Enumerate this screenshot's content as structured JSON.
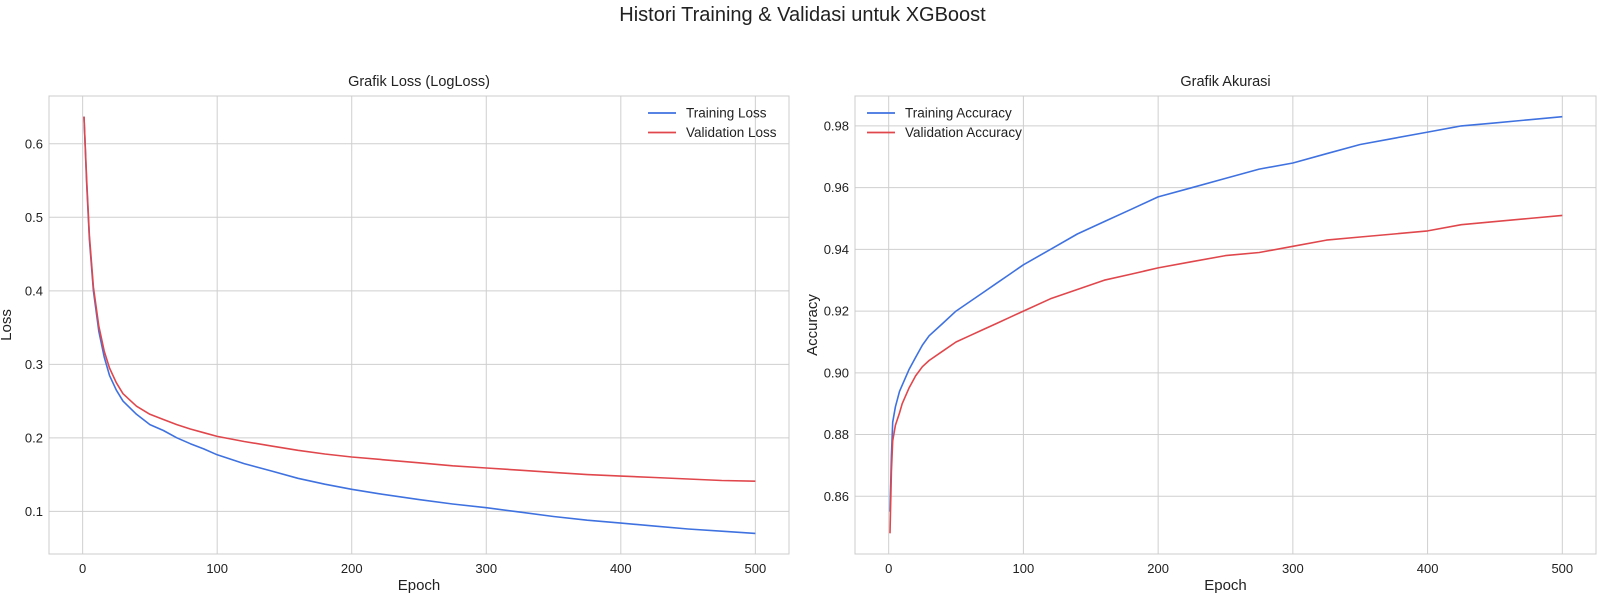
{
  "figure_title": "Histori Training & Validasi untuk XGBoost",
  "colors": {
    "training": "#3f72e0",
    "validation": "#e0474c",
    "grid": "#cfcfcf"
  },
  "chart_data": [
    {
      "type": "line",
      "title": "Grafik Loss (LogLoss)",
      "xlabel": "Epoch",
      "ylabel": "Loss",
      "xlim": [
        -25,
        525
      ],
      "ylim": [
        0.042,
        0.665
      ],
      "xticks": [
        0,
        100,
        200,
        300,
        400,
        500
      ],
      "yticks": [
        0.1,
        0.2,
        0.3,
        0.4,
        0.5,
        0.6
      ],
      "grid": true,
      "legend_position": "top-right",
      "series": [
        {
          "name": "Training Loss",
          "color": "#3f72e0",
          "points": [
            [
              1,
              0.637
            ],
            [
              3,
              0.545
            ],
            [
              5,
              0.47
            ],
            [
              8,
              0.4
            ],
            [
              12,
              0.345
            ],
            [
              16,
              0.31
            ],
            [
              20,
              0.285
            ],
            [
              25,
              0.265
            ],
            [
              30,
              0.25
            ],
            [
              40,
              0.232
            ],
            [
              50,
              0.218
            ],
            [
              60,
              0.21
            ],
            [
              70,
              0.2
            ],
            [
              80,
              0.192
            ],
            [
              90,
              0.185
            ],
            [
              100,
              0.177
            ],
            [
              120,
              0.165
            ],
            [
              140,
              0.155
            ],
            [
              160,
              0.145
            ],
            [
              180,
              0.137
            ],
            [
              200,
              0.13
            ],
            [
              220,
              0.124
            ],
            [
              250,
              0.116
            ],
            [
              275,
              0.11
            ],
            [
              300,
              0.105
            ],
            [
              325,
              0.099
            ],
            [
              350,
              0.093
            ],
            [
              375,
              0.088
            ],
            [
              400,
              0.084
            ],
            [
              425,
              0.08
            ],
            [
              450,
              0.076
            ],
            [
              475,
              0.073
            ],
            [
              500,
              0.07
            ]
          ]
        },
        {
          "name": "Validation Loss",
          "color": "#e0474c",
          "points": [
            [
              1,
              0.637
            ],
            [
              3,
              0.55
            ],
            [
              5,
              0.475
            ],
            [
              8,
              0.405
            ],
            [
              12,
              0.352
            ],
            [
              16,
              0.318
            ],
            [
              20,
              0.295
            ],
            [
              25,
              0.275
            ],
            [
              30,
              0.26
            ],
            [
              40,
              0.243
            ],
            [
              50,
              0.232
            ],
            [
              60,
              0.225
            ],
            [
              70,
              0.218
            ],
            [
              80,
              0.212
            ],
            [
              90,
              0.207
            ],
            [
              100,
              0.202
            ],
            [
              120,
              0.195
            ],
            [
              140,
              0.189
            ],
            [
              160,
              0.183
            ],
            [
              180,
              0.178
            ],
            [
              200,
              0.174
            ],
            [
              225,
              0.17
            ],
            [
              250,
              0.166
            ],
            [
              275,
              0.162
            ],
            [
              300,
              0.159
            ],
            [
              325,
              0.156
            ],
            [
              350,
              0.153
            ],
            [
              375,
              0.15
            ],
            [
              400,
              0.148
            ],
            [
              425,
              0.146
            ],
            [
              450,
              0.144
            ],
            [
              475,
              0.142
            ],
            [
              500,
              0.141
            ]
          ]
        }
      ]
    },
    {
      "type": "line",
      "title": "Grafik Akurasi",
      "xlabel": "Epoch",
      "ylabel": "Accuracy",
      "xlim": [
        -25,
        525
      ],
      "ylim": [
        0.8413,
        0.9897
      ],
      "xticks": [
        0,
        100,
        200,
        300,
        400,
        500
      ],
      "yticks": [
        0.86,
        0.88,
        0.9,
        0.92,
        0.94,
        0.96,
        0.98
      ],
      "grid": true,
      "legend_position": "top-left",
      "series": [
        {
          "name": "Training Accuracy",
          "color": "#3f72e0",
          "points": [
            [
              1,
              0.855
            ],
            [
              2,
              0.873
            ],
            [
              3,
              0.884
            ],
            [
              5,
              0.889
            ],
            [
              8,
              0.894
            ],
            [
              10,
              0.896
            ],
            [
              15,
              0.901
            ],
            [
              20,
              0.905
            ],
            [
              25,
              0.909
            ],
            [
              30,
              0.912
            ],
            [
              40,
              0.916
            ],
            [
              50,
              0.92
            ],
            [
              60,
              0.923
            ],
            [
              70,
              0.926
            ],
            [
              80,
              0.929
            ],
            [
              90,
              0.932
            ],
            [
              100,
              0.935
            ],
            [
              120,
              0.94
            ],
            [
              140,
              0.945
            ],
            [
              160,
              0.949
            ],
            [
              180,
              0.953
            ],
            [
              200,
              0.957
            ],
            [
              225,
              0.96
            ],
            [
              250,
              0.963
            ],
            [
              275,
              0.966
            ],
            [
              300,
              0.968
            ],
            [
              325,
              0.971
            ],
            [
              350,
              0.974
            ],
            [
              375,
              0.976
            ],
            [
              400,
              0.978
            ],
            [
              425,
              0.98
            ],
            [
              450,
              0.981
            ],
            [
              475,
              0.982
            ],
            [
              500,
              0.983
            ]
          ]
        },
        {
          "name": "Validation Accuracy",
          "color": "#e0474c",
          "points": [
            [
              1,
              0.848
            ],
            [
              2,
              0.868
            ],
            [
              3,
              0.878
            ],
            [
              5,
              0.883
            ],
            [
              8,
              0.887
            ],
            [
              10,
              0.89
            ],
            [
              15,
              0.895
            ],
            [
              20,
              0.899
            ],
            [
              25,
              0.902
            ],
            [
              30,
              0.904
            ],
            [
              40,
              0.907
            ],
            [
              50,
              0.91
            ],
            [
              60,
              0.912
            ],
            [
              70,
              0.914
            ],
            [
              80,
              0.916
            ],
            [
              90,
              0.918
            ],
            [
              100,
              0.92
            ],
            [
              120,
              0.924
            ],
            [
              140,
              0.927
            ],
            [
              160,
              0.93
            ],
            [
              180,
              0.932
            ],
            [
              200,
              0.934
            ],
            [
              225,
              0.936
            ],
            [
              250,
              0.938
            ],
            [
              275,
              0.939
            ],
            [
              300,
              0.941
            ],
            [
              325,
              0.943
            ],
            [
              350,
              0.944
            ],
            [
              375,
              0.945
            ],
            [
              400,
              0.946
            ],
            [
              425,
              0.948
            ],
            [
              450,
              0.949
            ],
            [
              475,
              0.95
            ],
            [
              500,
              0.951
            ]
          ]
        }
      ]
    }
  ]
}
